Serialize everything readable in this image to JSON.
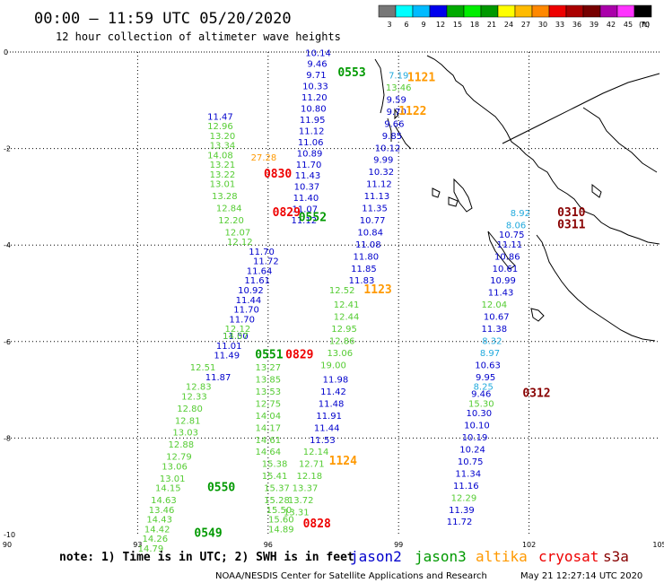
{
  "title": "00:00 – 11:59 UTC 05/20/2020",
  "subtitle": "12 hour collection of altimeter wave heights",
  "scale": {
    "colors": [
      "#777777",
      "#00ffff",
      "#00bbff",
      "#0000ee",
      "#00aa00",
      "#00ee00",
      "#009900",
      "#ffff00",
      "#ffbb00",
      "#ff8800",
      "#ee0000",
      "#aa0000",
      "#770000",
      "#aa00aa",
      "#ff33ff",
      "#000000"
    ],
    "labels": [
      "3",
      "6",
      "9",
      "12",
      "15",
      "18",
      "21",
      "24",
      "27",
      "30",
      "33",
      "36",
      "39",
      "42",
      "45",
      "70"
    ],
    "unit": "(ft)"
  },
  "axes": {
    "x_ticks": [
      "90",
      "93",
      "96",
      "99",
      "102",
      "105"
    ],
    "y_ticks": [
      "0",
      "-2",
      "-4",
      "-6",
      "-8",
      "-10"
    ]
  },
  "note": "note: 1) Time is in UTC; 2) SWH is in feet",
  "satellites": [
    {
      "name": "jason2",
      "color": "#0000cc"
    },
    {
      "name": "jason3",
      "color": "#009900"
    },
    {
      "name": "altika",
      "color": "#ff9900"
    },
    {
      "name": "cryosat",
      "color": "#ee0000"
    },
    {
      "name": "s3a",
      "color": "#880000"
    }
  ],
  "credit": "NOAA/NESDIS Center for Satellite Applications and Research",
  "timestamp": "May 21 12:27:14 UTC 2020",
  "passes": [
    {
      "label": "0553",
      "sat": "jason3",
      "lon": 97.6,
      "lat": -0.5
    },
    {
      "label": "1121",
      "sat": "altika",
      "lon": 99.2,
      "lat": -0.6
    },
    {
      "label": "1122",
      "sat": "altika",
      "lon": 99.0,
      "lat": -1.3
    },
    {
      "label": "0830",
      "sat": "cryosat",
      "lon": 95.9,
      "lat": -2.6
    },
    {
      "label": "0829",
      "sat": "cryosat",
      "lon": 96.1,
      "lat": -3.4
    },
    {
      "label": "0552",
      "sat": "jason3",
      "lon": 96.7,
      "lat": -3.5
    },
    {
      "label": "1123",
      "sat": "altika",
      "lon": 98.2,
      "lat": -5.0
    },
    {
      "label": "0551",
      "sat": "jason3",
      "lon": 95.7,
      "lat": -6.35
    },
    {
      "label": "0829",
      "sat": "cryosat",
      "lon": 96.4,
      "lat": -6.35
    },
    {
      "label": "0310",
      "sat": "s3a",
      "lon": 102.65,
      "lat": -3.4
    },
    {
      "label": "0311",
      "sat": "s3a",
      "lon": 102.65,
      "lat": -3.65
    },
    {
      "label": "0312",
      "sat": "s3a",
      "lon": 101.85,
      "lat": -7.15
    },
    {
      "label": "1124",
      "sat": "altika",
      "lon": 97.4,
      "lat": -8.55
    },
    {
      "label": "0550",
      "sat": "jason3",
      "lon": 94.6,
      "lat": -9.1
    },
    {
      "label": "0828",
      "sat": "cryosat",
      "lon": 96.8,
      "lat": -9.85
    },
    {
      "label": "0549",
      "sat": "jason3",
      "lon": 94.3,
      "lat": -10.05
    }
  ],
  "tracks": [
    {
      "sat": "jason2",
      "color": "#0000cc",
      "lon_start": 97.15,
      "lat_start": -0.08,
      "lon_end": 98.65,
      "lat_end": -3.55,
      "values": [
        "10.14",
        "9.46",
        "9.71",
        "10.33",
        "11.20",
        "10.80",
        "11.95",
        "11.12",
        "11.06",
        "10.89",
        "11.70",
        "11.43",
        "10.37",
        "11.40",
        "11.07",
        "11.12"
      ],
      "extra": [
        {
          "v": "9.59",
          "lon": 98.95,
          "lat": -1.05
        },
        {
          "v": "9.70",
          "lon": 98.95,
          "lat": -1.3
        },
        {
          "v": "9.66",
          "lon": 98.9,
          "lat": -1.55
        },
        {
          "v": "9.85",
          "lon": 98.85,
          "lat": -1.8
        },
        {
          "v": "10.12",
          "lon": 98.75,
          "lat": -2.05
        },
        {
          "v": "9.99",
          "lon": 98.65,
          "lat": -2.3
        },
        {
          "v": "10.32",
          "lon": 98.6,
          "lat": -2.55
        },
        {
          "v": "11.12",
          "lon": 98.55,
          "lat": -2.8
        },
        {
          "v": "11.13",
          "lon": 98.5,
          "lat": -3.05
        },
        {
          "v": "11.35",
          "lon": 98.45,
          "lat": -3.3
        },
        {
          "v": "10.77",
          "lon": 98.4,
          "lat": -3.55
        },
        {
          "v": "10.84",
          "lon": 98.35,
          "lat": -3.8
        },
        {
          "v": "11.08",
          "lon": 98.3,
          "lat": -4.05
        },
        {
          "v": "11.80",
          "lon": 98.25,
          "lat": -4.3
        },
        {
          "v": "11.85",
          "lon": 98.2,
          "lat": -4.55
        },
        {
          "v": "11.83",
          "lon": 98.15,
          "lat": -4.8
        },
        {
          "v": "11.70",
          "lon": 95.85,
          "lat": -4.2
        },
        {
          "v": "11.72",
          "lon": 95.95,
          "lat": -4.4
        },
        {
          "v": "11.64",
          "lon": 95.8,
          "lat": -4.6
        },
        {
          "v": "11.61",
          "lon": 95.75,
          "lat": -4.8
        },
        {
          "v": "10.92",
          "lon": 95.6,
          "lat": -5.0
        },
        {
          "v": "11.44",
          "lon": 95.55,
          "lat": -5.2
        },
        {
          "v": "11.70",
          "lon": 95.5,
          "lat": -5.4
        },
        {
          "v": "11.70",
          "lon": 95.4,
          "lat": -5.6
        },
        {
          "v": "11.50",
          "lon": 95.25,
          "lat": -5.95
        },
        {
          "v": "11.01",
          "lon": 95.1,
          "lat": -6.15
        },
        {
          "v": "11.49",
          "lon": 95.05,
          "lat": -6.35
        },
        {
          "v": "11.87",
          "lon": 94.85,
          "lat": -6.8
        },
        {
          "v": "11.98",
          "lon": 97.55,
          "lat": -6.85
        },
        {
          "v": "11.42",
          "lon": 97.5,
          "lat": -7.1
        },
        {
          "v": "11.48",
          "lon": 97.45,
          "lat": -7.35
        },
        {
          "v": "11.91",
          "lon": 97.4,
          "lat": -7.6
        },
        {
          "v": "11.44",
          "lon": 97.35,
          "lat": -7.85
        },
        {
          "v": "11.53",
          "lon": 97.25,
          "lat": -8.1
        },
        {
          "v": "10.75",
          "lon": 101.6,
          "lat": -3.85
        },
        {
          "v": "11.11",
          "lon": 101.55,
          "lat": -4.05
        },
        {
          "v": "10.86",
          "lon": 101.5,
          "lat": -4.3
        },
        {
          "v": "10.61",
          "lon": 101.45,
          "lat": -4.55
        },
        {
          "v": "10.99",
          "lon": 101.4,
          "lat": -4.8
        },
        {
          "v": "11.43",
          "lon": 101.35,
          "lat": -5.05
        },
        {
          "v": "10.67",
          "lon": 101.25,
          "lat": -5.55
        },
        {
          "v": "11.38",
          "lon": 101.2,
          "lat": -5.8
        },
        {
          "v": "10.63",
          "lon": 101.05,
          "lat": -6.55
        },
        {
          "v": "9.95",
          "lon": 101.0,
          "lat": -6.8
        },
        {
          "v": "9.46",
          "lon": 100.9,
          "lat": -7.15
        },
        {
          "v": "10.30",
          "lon": 100.85,
          "lat": -7.55
        },
        {
          "v": "10.10",
          "lon": 100.8,
          "lat": -7.8
        },
        {
          "v": "10.19",
          "lon": 100.75,
          "lat": -8.05
        },
        {
          "v": "10.24",
          "lon": 100.7,
          "lat": -8.3
        },
        {
          "v": "10.75",
          "lon": 100.65,
          "lat": -8.55
        },
        {
          "v": "11.34",
          "lon": 100.6,
          "lat": -8.8
        },
        {
          "v": "11.16",
          "lon": 100.55,
          "lat": -9.05
        },
        {
          "v": "11.39",
          "lon": 100.45,
          "lat": -9.55
        },
        {
          "v": "11.72",
          "lon": 100.4,
          "lat": -9.8
        },
        {
          "v": "11.47",
          "lon": 94.9,
          "lat": -1.4
        }
      ]
    }
  ],
  "green_values": [
    {
      "v": "13.46",
      "lon": 99.0,
      "lat": -0.8
    },
    {
      "v": "12.96",
      "lon": 94.9,
      "lat": -1.6
    },
    {
      "v": "13.20",
      "lon": 94.95,
      "lat": -1.8
    },
    {
      "v": "13.34",
      "lon": 94.95,
      "lat": -2.0
    },
    {
      "v": "14.08",
      "lon": 94.9,
      "lat": -2.2
    },
    {
      "v": "13.21",
      "lon": 94.95,
      "lat": -2.4
    },
    {
      "v": "13.22",
      "lon": 94.95,
      "lat": -2.6
    },
    {
      "v": "13.01",
      "lon": 94.95,
      "lat": -2.8
    },
    {
      "v": "13.28",
      "lon": 95.0,
      "lat": -3.05
    },
    {
      "v": "12.84",
      "lon": 95.1,
      "lat": -3.3
    },
    {
      "v": "12.20",
      "lon": 95.15,
      "lat": -3.55
    },
    {
      "v": "12.07",
      "lon": 95.3,
      "lat": -3.8
    },
    {
      "v": "12.12",
      "lon": 95.35,
      "lat": -4.0
    },
    {
      "v": "12.52",
      "lon": 97.7,
      "lat": -5.0
    },
    {
      "v": "12.41",
      "lon": 97.8,
      "lat": -5.3
    },
    {
      "v": "12.44",
      "lon": 97.8,
      "lat": -5.55
    },
    {
      "v": "12.95",
      "lon": 97.75,
      "lat": -5.8
    },
    {
      "v": "12.86",
      "lon": 97.7,
      "lat": -6.05
    },
    {
      "v": "13.06",
      "lon": 97.65,
      "lat": -6.3
    },
    {
      "v": "19.00",
      "lon": 97.5,
      "lat": -6.55
    },
    {
      "v": "12.12",
      "lon": 95.3,
      "lat": -5.8
    },
    {
      "v": "14.07",
      "lon": 95.25,
      "lat": -5.95
    },
    {
      "v": "12.51",
      "lon": 94.5,
      "lat": -6.6
    },
    {
      "v": "12.83",
      "lon": 94.4,
      "lat": -7.0
    },
    {
      "v": "12.33",
      "lon": 94.3,
      "lat": -7.2
    },
    {
      "v": "12.80",
      "lon": 94.2,
      "lat": -7.45
    },
    {
      "v": "12.81",
      "lon": 94.15,
      "lat": -7.7
    },
    {
      "v": "13.03",
      "lon": 94.1,
      "lat": -7.95
    },
    {
      "v": "12.88",
      "lon": 94.0,
      "lat": -8.2
    },
    {
      "v": "12.79",
      "lon": 93.95,
      "lat": -8.45
    },
    {
      "v": "13.06",
      "lon": 93.85,
      "lat": -8.65
    },
    {
      "v": "13.01",
      "lon": 93.8,
      "lat": -8.9
    },
    {
      "v": "14.15",
      "lon": 93.7,
      "lat": -9.1
    },
    {
      "v": "14.63",
      "lon": 93.6,
      "lat": -9.35
    },
    {
      "v": "13.46",
      "lon": 93.55,
      "lat": -9.55
    },
    {
      "v": "14.43",
      "lon": 93.5,
      "lat": -9.75
    },
    {
      "v": "14.42",
      "lon": 93.45,
      "lat": -9.95
    },
    {
      "v": "14.26",
      "lon": 93.4,
      "lat": -10.15
    },
    {
      "v": "14.79",
      "lon": 93.3,
      "lat": -10.35
    },
    {
      "v": "13.27",
      "lon": 96.0,
      "lat": -6.6
    },
    {
      "v": "13.85",
      "lon": 96.0,
      "lat": -6.85
    },
    {
      "v": "13.53",
      "lon": 96.0,
      "lat": -7.1
    },
    {
      "v": "12.75",
      "lon": 96.0,
      "lat": -7.35
    },
    {
      "v": "14.04",
      "lon": 96.0,
      "lat": -7.6
    },
    {
      "v": "14.17",
      "lon": 96.0,
      "lat": -7.85
    },
    {
      "v": "14.61",
      "lon": 96.0,
      "lat": -8.1
    },
    {
      "v": "14.64",
      "lon": 96.0,
      "lat": -8.35
    },
    {
      "v": "15.38",
      "lon": 96.15,
      "lat": -8.6
    },
    {
      "v": "15.41",
      "lon": 96.15,
      "lat": -8.85
    },
    {
      "v": "15.37",
      "lon": 96.2,
      "lat": -9.1
    },
    {
      "v": "15.28",
      "lon": 96.2,
      "lat": -9.35
    },
    {
      "v": "15.50",
      "lon": 96.25,
      "lat": -9.55
    },
    {
      "v": "15.60",
      "lon": 96.3,
      "lat": -9.75
    },
    {
      "v": "14.89",
      "lon": 96.3,
      "lat": -9.95
    },
    {
      "v": "12.14",
      "lon": 97.1,
      "lat": -8.35
    },
    {
      "v": "12.71",
      "lon": 97.0,
      "lat": -8.6
    },
    {
      "v": "12.18",
      "lon": 96.95,
      "lat": -8.85
    },
    {
      "v": "13.37",
      "lon": 96.85,
      "lat": -9.1
    },
    {
      "v": "13.72",
      "lon": 96.75,
      "lat": -9.35
    },
    {
      "v": "13.31",
      "lon": 96.65,
      "lat": -9.6
    },
    {
      "v": "12.04",
      "lon": 101.2,
      "lat": -5.3
    },
    {
      "v": "15.30",
      "lon": 100.9,
      "lat": -7.35
    },
    {
      "v": "12.29",
      "lon": 100.5,
      "lat": -9.3
    }
  ],
  "cyan_values": [
    {
      "v": "7.19",
      "lon": 99.0,
      "lat": -0.55
    },
    {
      "v": "8.92",
      "lon": 101.8,
      "lat": -3.4
    },
    {
      "v": "8.06",
      "lon": 101.7,
      "lat": -3.65
    },
    {
      "v": "8.32",
      "lon": 101.15,
      "lat": -6.05
    },
    {
      "v": "8.97",
      "lon": 101.1,
      "lat": -6.3
    },
    {
      "v": "8.25",
      "lon": 100.95,
      "lat": -7.0
    }
  ],
  "orange_values": [
    {
      "v": "27.28",
      "lon": 95.9,
      "lat": -2.25
    }
  ]
}
